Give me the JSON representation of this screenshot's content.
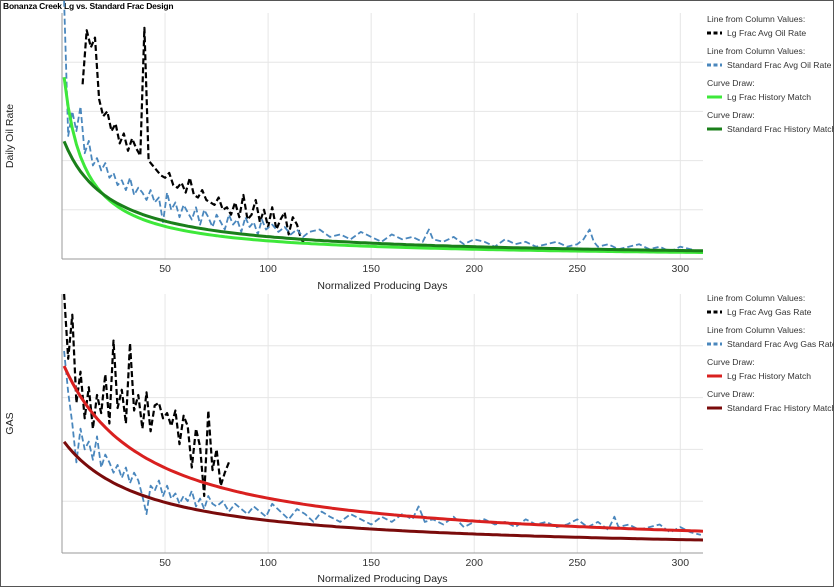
{
  "title": "Bonanza Creek Lg vs. Standard Frac Design",
  "colors": {
    "lg_oil_actual": "#000000",
    "std_oil_actual": "#4a87bd",
    "lg_oil_fit": "#3ee83a",
    "std_oil_fit": "#1a7f1a",
    "lg_gas_actual": "#000000",
    "std_gas_actual": "#4a87bd",
    "lg_gas_fit": "#d9201f",
    "std_gas_fit": "#7a0b0b",
    "grid": "#e6e6e6"
  },
  "chart_data": [
    {
      "type": "line",
      "ylabel": "Daily Oil Rate",
      "xlabel": "Normalized Producing Days",
      "xlim": [
        0,
        311
      ],
      "ylim": [
        0,
        1
      ],
      "x_ticks": [
        50,
        100,
        150,
        200,
        250,
        300
      ],
      "y_ticks_labeled": false,
      "grid": true,
      "legend_position": "right",
      "legend": [
        {
          "caption": "Line from Column Values:",
          "label": "Lg Frac Avg Oil Rate",
          "style": "dashed",
          "color_key": "lg_oil_actual"
        },
        {
          "caption": "Line from Column Values:",
          "label": "Standard Frac Avg Oil Rate",
          "style": "dashed",
          "color_key": "std_oil_actual"
        },
        {
          "caption": "Curve Draw:",
          "label": "Lg Frac History Match",
          "style": "solid",
          "color_key": "lg_oil_fit"
        },
        {
          "caption": "Curve Draw:",
          "label": "Standard Frac History Match",
          "style": "solid",
          "color_key": "std_oil_fit"
        }
      ],
      "series": [
        {
          "name": "Lg Frac Avg Oil Rate",
          "color_key": "lg_oil_actual",
          "dashed": true,
          "width": 2.2,
          "x": [
            10,
            12,
            14,
            16,
            18,
            20,
            22,
            24,
            26,
            28,
            30,
            32,
            34,
            36,
            38,
            40,
            42,
            44,
            46,
            48,
            50,
            52,
            54,
            56,
            58,
            60,
            62,
            64,
            66,
            68,
            70,
            72,
            74,
            76,
            78,
            80,
            82,
            84,
            86,
            88,
            90,
            92,
            94,
            96,
            98,
            100,
            102,
            104,
            106,
            108,
            110,
            112,
            114,
            116,
            118
          ],
          "y": [
            0.71,
            0.93,
            0.86,
            0.9,
            0.65,
            0.58,
            0.6,
            0.52,
            0.55,
            0.47,
            0.51,
            0.44,
            0.49,
            0.45,
            0.42,
            0.94,
            0.4,
            0.38,
            0.36,
            0.34,
            0.33,
            0.35,
            0.3,
            0.29,
            0.31,
            0.27,
            0.33,
            0.26,
            0.25,
            0.28,
            0.24,
            0.23,
            0.22,
            0.25,
            0.2,
            0.21,
            0.18,
            0.23,
            0.17,
            0.26,
            0.16,
            0.18,
            0.24,
            0.15,
            0.2,
            0.13,
            0.21,
            0.12,
            0.16,
            0.19,
            0.1,
            0.17,
            0.14,
            0.08,
            0.06
          ]
        },
        {
          "name": "Standard Frac Avg Oil Rate",
          "color_key": "std_oil_actual",
          "dashed": true,
          "width": 1.8,
          "x": [
            1,
            3,
            5,
            7,
            9,
            11,
            13,
            15,
            17,
            19,
            21,
            23,
            25,
            27,
            29,
            31,
            33,
            35,
            37,
            39,
            41,
            43,
            45,
            47,
            49,
            51,
            53,
            55,
            57,
            59,
            61,
            63,
            65,
            67,
            69,
            71,
            73,
            75,
            77,
            79,
            81,
            83,
            85,
            87,
            89,
            91,
            93,
            95,
            97,
            99,
            102,
            105,
            108,
            111,
            114,
            117,
            120,
            125,
            130,
            135,
            140,
            145,
            150,
            155,
            160,
            165,
            170,
            175,
            178,
            180,
            185,
            190,
            195,
            200,
            205,
            210,
            215,
            220,
            225,
            230,
            235,
            240,
            245,
            250,
            253,
            256,
            258,
            260,
            265,
            270,
            275,
            280,
            285,
            290,
            295,
            300,
            305,
            310
          ],
          "y": [
            1.05,
            0.5,
            0.6,
            0.52,
            0.62,
            0.43,
            0.48,
            0.38,
            0.41,
            0.36,
            0.39,
            0.33,
            0.35,
            0.3,
            0.32,
            0.28,
            0.33,
            0.26,
            0.29,
            0.27,
            0.24,
            0.28,
            0.23,
            0.25,
            0.15,
            0.27,
            0.2,
            0.23,
            0.17,
            0.22,
            0.19,
            0.16,
            0.21,
            0.14,
            0.2,
            0.17,
            0.13,
            0.18,
            0.15,
            0.12,
            0.18,
            0.14,
            0.16,
            0.11,
            0.17,
            0.13,
            0.15,
            0.1,
            0.16,
            0.12,
            0.14,
            0.11,
            0.13,
            0.1,
            0.12,
            0.09,
            0.11,
            0.12,
            0.09,
            0.1,
            0.08,
            0.11,
            0.09,
            0.07,
            0.1,
            0.08,
            0.09,
            0.07,
            0.12,
            0.08,
            0.07,
            0.09,
            0.06,
            0.08,
            0.07,
            0.05,
            0.08,
            0.06,
            0.07,
            0.05,
            0.06,
            0.07,
            0.05,
            0.06,
            0.08,
            0.12,
            0.07,
            0.05,
            0.06,
            0.04,
            0.05,
            0.06,
            0.04,
            0.05,
            0.03,
            0.05,
            0.04,
            0.03
          ]
        },
        {
          "name": "Lg Frac History Match",
          "color_key": "lg_oil_fit",
          "dashed": false,
          "width": 3,
          "fit": {
            "qi": 0.82,
            "di": 0.11,
            "b": 1.05
          },
          "x_range": [
            1,
            311
          ]
        },
        {
          "name": "Standard Frac History Match",
          "color_key": "std_oil_fit",
          "dashed": false,
          "width": 3,
          "fit": {
            "qi": 0.5,
            "di": 0.045,
            "b": 1.0
          },
          "x_range": [
            1,
            311
          ]
        }
      ]
    },
    {
      "type": "line",
      "ylabel": "GAS",
      "xlabel": "Normalized Producing Days",
      "xlim": [
        0,
        311
      ],
      "ylim": [
        0,
        1
      ],
      "x_ticks": [
        50,
        100,
        150,
        200,
        250,
        300
      ],
      "y_ticks_labeled": false,
      "grid": true,
      "legend_position": "right",
      "legend": [
        {
          "caption": "Line from Column Values:",
          "label": "Lg Frac Avg Gas Rate",
          "style": "dashed",
          "color_key": "lg_gas_actual"
        },
        {
          "caption": "Line from Column Values:",
          "label": "Standard Frac Avg Gas Rate",
          "style": "dashed",
          "color_key": "std_gas_actual"
        },
        {
          "caption": "Curve Draw:",
          "label": "Lg Frac History Match",
          "style": "solid",
          "color_key": "lg_gas_fit"
        },
        {
          "caption": "Curve Draw:",
          "label": "Standard Frac History Match",
          "style": "solid",
          "color_key": "std_gas_fit"
        }
      ],
      "series": [
        {
          "name": "Lg Frac Avg Gas Rate",
          "color_key": "lg_gas_actual",
          "dashed": true,
          "width": 2.2,
          "x": [
            1,
            3,
            5,
            7,
            9,
            11,
            13,
            15,
            17,
            19,
            21,
            23,
            25,
            27,
            29,
            31,
            33,
            35,
            37,
            39,
            41,
            43,
            45,
            47,
            49,
            51,
            53,
            55,
            57,
            59,
            61,
            63,
            65,
            67,
            69,
            71,
            73,
            75,
            77,
            79,
            81
          ],
          "y": [
            1.0,
            0.75,
            0.92,
            0.58,
            0.7,
            0.52,
            0.64,
            0.48,
            0.61,
            0.54,
            0.69,
            0.5,
            0.82,
            0.56,
            0.63,
            0.5,
            0.81,
            0.55,
            0.61,
            0.48,
            0.62,
            0.47,
            0.57,
            0.58,
            0.52,
            0.54,
            0.49,
            0.55,
            0.42,
            0.53,
            0.49,
            0.33,
            0.48,
            0.41,
            0.22,
            0.55,
            0.32,
            0.4,
            0.26,
            0.31,
            0.35
          ]
        },
        {
          "name": "Standard Frac Avg Gas Rate",
          "color_key": "std_gas_actual",
          "dashed": true,
          "width": 1.8,
          "x": [
            1,
            3,
            5,
            7,
            9,
            11,
            13,
            15,
            17,
            19,
            21,
            23,
            25,
            27,
            29,
            31,
            33,
            35,
            37,
            39,
            41,
            43,
            45,
            47,
            49,
            51,
            53,
            55,
            57,
            59,
            61,
            63,
            65,
            67,
            69,
            71,
            73,
            75,
            78,
            81,
            84,
            87,
            90,
            93,
            96,
            99,
            102,
            106,
            110,
            114,
            118,
            122,
            126,
            130,
            135,
            140,
            145,
            150,
            155,
            160,
            165,
            170,
            173,
            176,
            180,
            185,
            190,
            195,
            200,
            205,
            210,
            215,
            220,
            225,
            230,
            235,
            240,
            245,
            250,
            255,
            260,
            265,
            268,
            270,
            275,
            280,
            285,
            290,
            295,
            300,
            305,
            310
          ],
          "y": [
            0.78,
            0.62,
            0.5,
            0.35,
            0.48,
            0.4,
            0.43,
            0.36,
            0.45,
            0.33,
            0.38,
            0.35,
            0.31,
            0.34,
            0.29,
            0.33,
            0.27,
            0.31,
            0.28,
            0.22,
            0.15,
            0.26,
            0.24,
            0.28,
            0.22,
            0.26,
            0.21,
            0.23,
            0.19,
            0.22,
            0.2,
            0.24,
            0.18,
            0.21,
            0.17,
            0.22,
            0.19,
            0.18,
            0.2,
            0.16,
            0.19,
            0.17,
            0.15,
            0.18,
            0.16,
            0.14,
            0.19,
            0.16,
            0.13,
            0.17,
            0.15,
            0.12,
            0.16,
            0.14,
            0.12,
            0.15,
            0.13,
            0.11,
            0.14,
            0.12,
            0.15,
            0.13,
            0.18,
            0.12,
            0.13,
            0.11,
            0.14,
            0.1,
            0.12,
            0.13,
            0.11,
            0.12,
            0.1,
            0.13,
            0.11,
            0.12,
            0.1,
            0.11,
            0.13,
            0.1,
            0.12,
            0.09,
            0.14,
            0.1,
            0.11,
            0.09,
            0.1,
            0.11,
            0.08,
            0.1,
            0.08,
            0.07
          ]
        },
        {
          "name": "Lg Frac History Match",
          "color_key": "lg_gas_fit",
          "dashed": false,
          "width": 3,
          "fit": {
            "qi": 0.74,
            "di": 0.025,
            "b": 1.0
          },
          "x_range": [
            1,
            311
          ]
        },
        {
          "name": "Standard Frac History Match",
          "color_key": "std_gas_fit",
          "dashed": false,
          "width": 3,
          "fit": {
            "qi": 0.44,
            "di": 0.025,
            "b": 1.0
          },
          "x_range": [
            1,
            311
          ]
        }
      ]
    }
  ]
}
